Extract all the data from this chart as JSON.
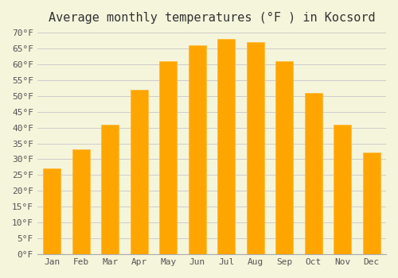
{
  "title": "Average monthly temperatures (°F ) in Kocsord",
  "months": [
    "Jan",
    "Feb",
    "Mar",
    "Apr",
    "May",
    "Jun",
    "Jul",
    "Aug",
    "Sep",
    "Oct",
    "Nov",
    "Dec"
  ],
  "values": [
    27,
    33,
    41,
    52,
    61,
    66,
    68,
    67,
    61,
    51,
    41,
    32
  ],
  "bar_color": "#FFA500",
  "bar_edge_color": "#FFB833",
  "background_color": "#F5F5DC",
  "grid_color": "#CCCCCC",
  "ylim": [
    0,
    70
  ],
  "yticks": [
    0,
    5,
    10,
    15,
    20,
    25,
    30,
    35,
    40,
    45,
    50,
    55,
    60,
    65,
    70
  ],
  "title_fontsize": 11,
  "tick_fontsize": 8,
  "font_family": "monospace"
}
